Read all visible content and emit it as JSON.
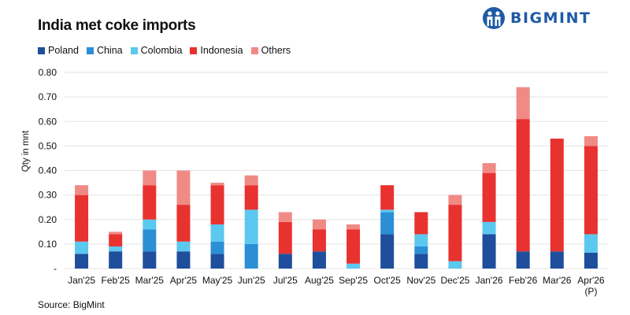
{
  "chart_data": {
    "type": "bar",
    "stacked": true,
    "title": "India met coke imports",
    "ylabel": "Qty in mnt",
    "ylim": [
      0,
      0.8
    ],
    "yticks": [
      "-",
      "0.10",
      "0.20",
      "0.30",
      "0.40",
      "0.50",
      "0.60",
      "0.70",
      "0.80"
    ],
    "categories": [
      "Jan'25",
      "Feb'25",
      "Mar'25",
      "Apr'25",
      "May'25",
      "Jun'25",
      "Jul'25",
      "Aug'25",
      "Sep'25",
      "Oct'25",
      "Nov'25",
      "Dec'25",
      "Jan'26",
      "Feb'26",
      "Mar'26",
      "Apr'26"
    ],
    "category_sublabels": [
      "",
      "",
      "",
      "",
      "",
      "",
      "",
      "",
      "",
      "",
      "",
      "",
      "",
      "",
      "",
      "(P)"
    ],
    "legend_position": "top-left",
    "grid": true,
    "series": [
      {
        "name": "Poland",
        "color": "#1f4e9c",
        "values": [
          0.06,
          0.07,
          0.07,
          0.07,
          0.06,
          0.0,
          0.06,
          0.07,
          0.0,
          0.14,
          0.06,
          0.0,
          0.14,
          0.07,
          0.07,
          0.065
        ]
      },
      {
        "name": "China",
        "color": "#2b8fd6",
        "values": [
          0.0,
          0.0,
          0.09,
          0.0,
          0.05,
          0.1,
          0.0,
          0.0,
          0.0,
          0.09,
          0.03,
          0.0,
          0.0,
          0.0,
          0.0,
          0.0
        ]
      },
      {
        "name": "Colombia",
        "color": "#5bc8f0",
        "values": [
          0.05,
          0.02,
          0.04,
          0.04,
          0.07,
          0.14,
          0.0,
          0.0,
          0.02,
          0.01,
          0.05,
          0.03,
          0.05,
          0.0,
          0.0,
          0.075
        ]
      },
      {
        "name": "Indonesia",
        "color": "#e8322f",
        "values": [
          0.19,
          0.05,
          0.14,
          0.15,
          0.16,
          0.1,
          0.13,
          0.09,
          0.14,
          0.1,
          0.09,
          0.23,
          0.2,
          0.54,
          0.46,
          0.36
        ]
      },
      {
        "name": "Others",
        "color": "#f08a85",
        "values": [
          0.04,
          0.01,
          0.06,
          0.14,
          0.01,
          0.04,
          0.04,
          0.04,
          0.02,
          0.0,
          0.0,
          0.04,
          0.04,
          0.13,
          0.0,
          0.04
        ]
      }
    ]
  },
  "logo": {
    "text": "BIGMINT",
    "color": "#1f5aa6"
  },
  "source": "Source: BigMint"
}
